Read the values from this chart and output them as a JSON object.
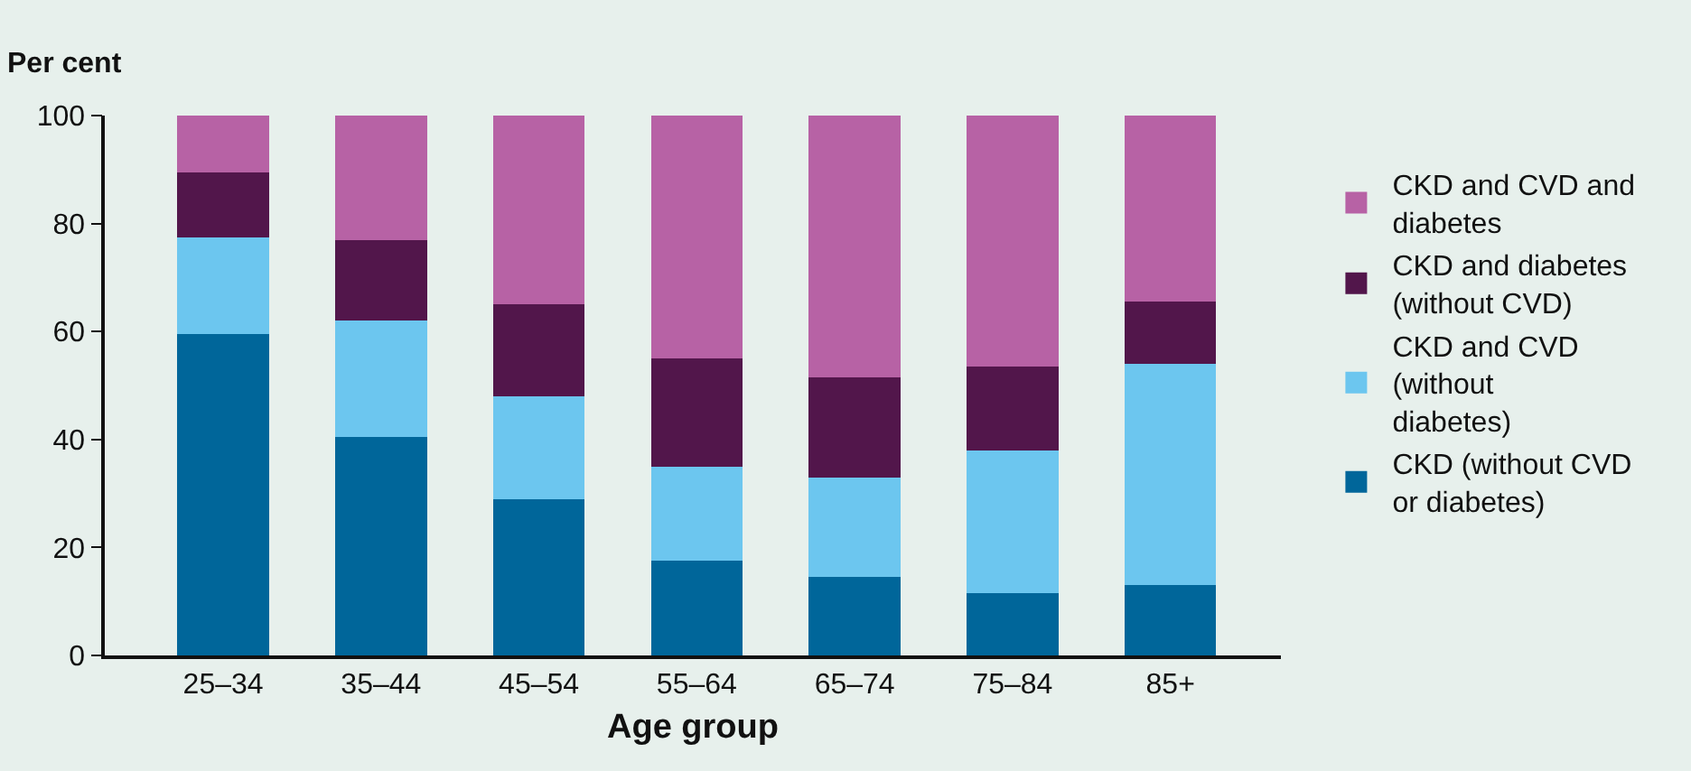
{
  "chart_data": {
    "type": "bar",
    "stacked": true,
    "xlabel": "Age group",
    "ylabel": "Per cent",
    "categories": [
      "25–34",
      "35–44",
      "45–54",
      "55–64",
      "65–74",
      "75–84",
      "85+"
    ],
    "series": [
      {
        "name": "CKD (without CVD or diabetes)",
        "color": "#00669a",
        "values": [
          59.5,
          40.5,
          29,
          17.5,
          14.5,
          11.5,
          13
        ]
      },
      {
        "name": "CKD and CVD (without diabetes)",
        "color": "#6cc6ef",
        "values": [
          18,
          21.5,
          19,
          17.5,
          18.5,
          26.5,
          41
        ]
      },
      {
        "name": "CKD and diabetes (without CVD)",
        "color": "#52164b",
        "values": [
          12,
          15,
          17,
          20,
          18.5,
          15.5,
          11.5
        ]
      },
      {
        "name": "CKD and CVD and diabetes",
        "color": "#b762a5",
        "values": [
          10.5,
          23,
          35,
          45,
          48.5,
          46.5,
          34.5
        ]
      }
    ],
    "ylim": [
      0,
      100
    ],
    "yticks": [
      0,
      20,
      40,
      60,
      80,
      100
    ],
    "grid": false,
    "legend": "right"
  }
}
